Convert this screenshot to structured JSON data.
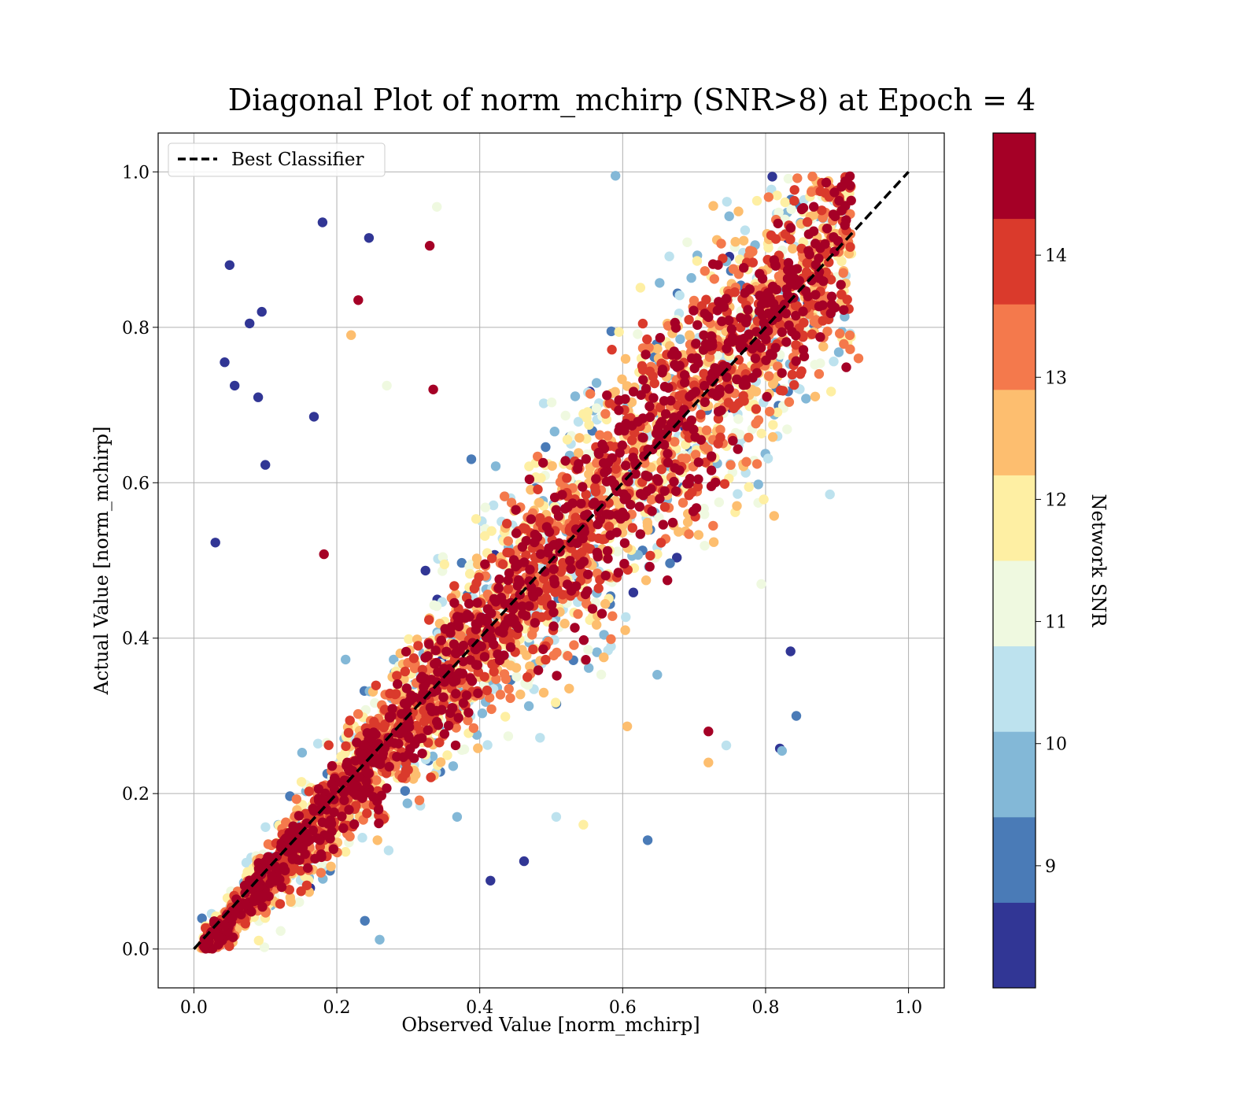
{
  "chart_data": {
    "type": "scatter",
    "title": "Diagonal Plot of norm_mchirp (SNR>8) at Epoch = 4",
    "xlabel": "Observed Value [norm_mchirp]",
    "ylabel": "Actual Value [norm_mchirp]",
    "xlim": [
      -0.05,
      1.05
    ],
    "ylim": [
      -0.05,
      1.05
    ],
    "x_ticks": [
      "0.0",
      "0.2",
      "0.4",
      "0.6",
      "0.8",
      "1.0"
    ],
    "y_ticks": [
      "0.0",
      "0.2",
      "0.4",
      "0.6",
      "0.8",
      "1.0"
    ],
    "grid": true,
    "legend": {
      "position": "top-left",
      "entries": [
        "Best Classifier"
      ]
    },
    "reference_line": {
      "name": "Best Classifier",
      "style": "dashed",
      "color": "#000000",
      "x": [
        0,
        1
      ],
      "y": [
        0,
        1
      ]
    },
    "colorbar": {
      "label": "Network SNR",
      "range": [
        8,
        15
      ],
      "ticks": [
        "9",
        "10",
        "11",
        "12",
        "13",
        "14"
      ],
      "bins": [
        {
          "from": 8.0,
          "to": 8.7,
          "color": "#313695"
        },
        {
          "from": 8.7,
          "to": 9.4,
          "color": "#4A7BB7"
        },
        {
          "from": 9.4,
          "to": 10.1,
          "color": "#83B8D7"
        },
        {
          "from": 10.1,
          "to": 10.8,
          "color": "#BDE2EE"
        },
        {
          "from": 10.8,
          "to": 11.5,
          "color": "#EFF9E0"
        },
        {
          "from": 11.5,
          "to": 12.2,
          "color": "#FEEFA3"
        },
        {
          "from": 12.2,
          "to": 12.9,
          "color": "#FDBE6F"
        },
        {
          "from": 12.9,
          "to": 13.6,
          "color": "#F4794C"
        },
        {
          "from": 13.6,
          "to": 14.3,
          "color": "#DA3A2C"
        },
        {
          "from": 14.3,
          "to": 15.0,
          "color": "#A50026"
        }
      ]
    },
    "points_note_values": {
      "outliers": [
        {
          "x": 0.05,
          "y": 0.88,
          "snr": 8.2
        },
        {
          "x": 0.18,
          "y": 0.935,
          "snr": 8.2
        },
        {
          "x": 0.245,
          "y": 0.915,
          "snr": 8.2
        },
        {
          "x": 0.33,
          "y": 0.905,
          "snr": 14.8
        },
        {
          "x": 0.23,
          "y": 0.835,
          "snr": 14.8
        },
        {
          "x": 0.095,
          "y": 0.82,
          "snr": 8.2
        },
        {
          "x": 0.078,
          "y": 0.805,
          "snr": 8.2
        },
        {
          "x": 0.22,
          "y": 0.79,
          "snr": 12.6
        },
        {
          "x": 0.043,
          "y": 0.755,
          "snr": 8.2
        },
        {
          "x": 0.057,
          "y": 0.725,
          "snr": 8.2
        },
        {
          "x": 0.09,
          "y": 0.71,
          "snr": 8.2
        },
        {
          "x": 0.27,
          "y": 0.725,
          "snr": 11.2
        },
        {
          "x": 0.335,
          "y": 0.72,
          "snr": 14.8
        },
        {
          "x": 0.168,
          "y": 0.685,
          "snr": 8.2
        },
        {
          "x": 0.1,
          "y": 0.623,
          "snr": 8.2
        },
        {
          "x": 0.59,
          "y": 0.995,
          "snr": 9.8
        },
        {
          "x": 0.34,
          "y": 0.955,
          "snr": 11.2
        },
        {
          "x": 0.182,
          "y": 0.508,
          "snr": 14.8
        },
        {
          "x": 0.03,
          "y": 0.523,
          "snr": 8.2
        },
        {
          "x": 0.26,
          "y": 0.012,
          "snr": 9.8
        },
        {
          "x": 0.415,
          "y": 0.088,
          "snr": 8.2
        },
        {
          "x": 0.462,
          "y": 0.113,
          "snr": 8.2
        },
        {
          "x": 0.507,
          "y": 0.17,
          "snr": 10.5
        },
        {
          "x": 0.545,
          "y": 0.16,
          "snr": 11.8
        },
        {
          "x": 0.635,
          "y": 0.14,
          "snr": 9.0
        },
        {
          "x": 0.72,
          "y": 0.28,
          "snr": 14.8
        },
        {
          "x": 0.82,
          "y": 0.258,
          "snr": 8.2
        },
        {
          "x": 0.823,
          "y": 0.255,
          "snr": 9.8
        },
        {
          "x": 0.843,
          "y": 0.3,
          "snr": 8.7
        },
        {
          "x": 0.835,
          "y": 0.383,
          "snr": 8.2
        },
        {
          "x": 0.93,
          "y": 0.76,
          "snr": 13.0
        },
        {
          "x": 0.89,
          "y": 0.585,
          "snr": 10.5
        },
        {
          "x": 0.745,
          "y": 0.262,
          "snr": 10.5
        },
        {
          "x": 0.72,
          "y": 0.24,
          "snr": 12.3
        }
      ]
    }
  }
}
